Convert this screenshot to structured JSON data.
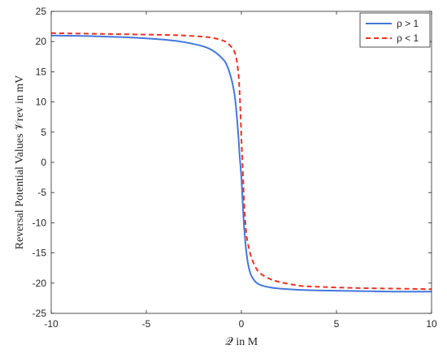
{
  "chart_data": {
    "type": "line",
    "title": "",
    "xlabel": "𝒬 in M",
    "ylabel": "Reversal Potential Values 𝒱rev in mV",
    "xlim": [
      -10,
      10
    ],
    "ylim": [
      -25,
      25
    ],
    "xticks": [
      -10,
      -5,
      0,
      5,
      10
    ],
    "yticks": [
      -25,
      -20,
      -15,
      -10,
      -5,
      0,
      5,
      10,
      15,
      20,
      25
    ],
    "x_tick_labels": [
      "-10",
      "-5",
      "0",
      "5",
      "10"
    ],
    "y_tick_labels": [
      "-25",
      "-20",
      "-15",
      "-10",
      "-5",
      "0",
      "5",
      "10",
      "15",
      "20",
      "25"
    ],
    "grid": false,
    "legend_position": "top-right",
    "x": [
      -10,
      -8,
      -6,
      -4,
      -3,
      -2,
      -1.5,
      -1,
      -0.75,
      -0.5,
      -0.35,
      -0.25,
      -0.15,
      -0.1,
      -0.05,
      0,
      0.05,
      0.1,
      0.15,
      0.25,
      0.35,
      0.5,
      0.75,
      1,
      1.5,
      2,
      3,
      4,
      6,
      8,
      10
    ],
    "series": [
      {
        "name": "ρ > 1",
        "color": "#4477dd",
        "style": "solid",
        "values": [
          21.0,
          20.9,
          20.7,
          20.3,
          19.9,
          19.2,
          18.5,
          17.2,
          16.0,
          13.5,
          11.0,
          8.0,
          4.0,
          1.5,
          -0.5,
          -2.5,
          -5.5,
          -8.5,
          -11.0,
          -14.5,
          -16.8,
          -18.6,
          -19.8,
          -20.3,
          -20.7,
          -20.9,
          -21.1,
          -21.2,
          -21.3,
          -21.4,
          -21.4
        ]
      },
      {
        "name": "ρ < 1",
        "color": "#ee3322",
        "style": "dashed",
        "values": [
          21.4,
          21.3,
          21.2,
          21.1,
          21.0,
          20.8,
          20.6,
          20.2,
          19.8,
          19.0,
          18.2,
          17.0,
          14.5,
          12.0,
          8.5,
          4.0,
          0.5,
          -3.5,
          -7.0,
          -11.5,
          -13.5,
          -15.5,
          -17.4,
          -18.4,
          -19.3,
          -19.8,
          -20.4,
          -20.6,
          -20.8,
          -20.9,
          -21.0
        ]
      }
    ]
  }
}
